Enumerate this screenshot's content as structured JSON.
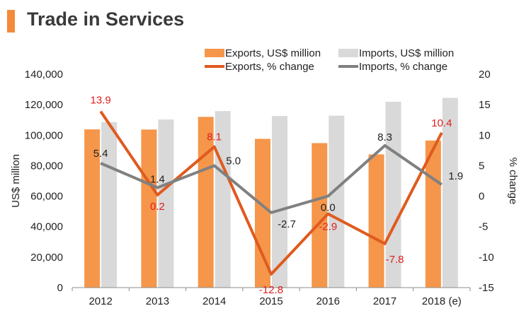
{
  "title": "Trade in Services",
  "chart_data": {
    "type": "bar+line",
    "title": "Trade in Services",
    "categories": [
      "2012",
      "2013",
      "2014",
      "2015",
      "2016",
      "2017",
      "2018 (e)"
    ],
    "bars": [
      {
        "name": "Exports, US$ million",
        "color": "#f5964a",
        "values": [
          103800,
          103700,
          112000,
          97600,
          94800,
          87400,
          96500
        ]
      },
      {
        "name": "Imports, US$ million",
        "color": "#d9d9d9",
        "values": [
          108600,
          110300,
          115800,
          112600,
          112800,
          121900,
          124500
        ]
      }
    ],
    "lines": [
      {
        "name": "Exports, % change",
        "color": "#e05a1e",
        "label_color": "#e02020",
        "values": [
          13.9,
          0.2,
          8.1,
          -12.8,
          -2.9,
          -7.8,
          10.4
        ],
        "labels": [
          "13.9",
          "0.2",
          "8.1",
          "-12.8",
          "-2.9",
          "-7.8",
          "10.4"
        ]
      },
      {
        "name": "Imports, % change",
        "color": "#808080",
        "label_color": "#222222",
        "values": [
          5.4,
          1.4,
          5.0,
          -2.7,
          0.0,
          8.3,
          1.9
        ],
        "labels": [
          "5.4",
          "1.4",
          "5.0",
          "-2.7",
          "0.0",
          "8.3",
          "1.9"
        ]
      }
    ],
    "ylabel": "US$ million",
    "ylim": [
      0,
      140000
    ],
    "yticks": [
      "0",
      "20,000",
      "40,000",
      "60,000",
      "80,000",
      "100,000",
      "120,000",
      "140,000"
    ],
    "y2label": "% change",
    "y2lim": [
      -15,
      20
    ],
    "y2ticks": [
      "-15",
      "-10",
      "-5",
      "0",
      "5",
      "10",
      "15",
      "20"
    ],
    "grid": false,
    "legend": "top-right"
  }
}
